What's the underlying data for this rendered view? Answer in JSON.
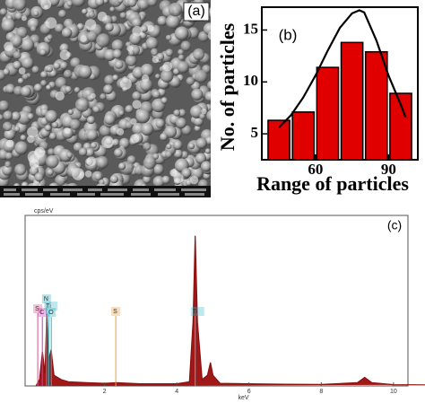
{
  "image_panel": {
    "label": "(a)"
  },
  "chart_data": [
    {
      "type": "histogram",
      "label": "(b)",
      "xlabel": "Range of particles",
      "ylabel": "No. of particles",
      "bins": [
        40,
        50,
        60,
        70,
        80,
        90,
        100
      ],
      "values": [
        6.3,
        7.1,
        11.4,
        13.8,
        12.9,
        8.9
      ],
      "color": "#e00000",
      "fit": {
        "x": [
          45,
          50,
          55,
          60,
          65,
          70,
          75,
          78,
          80,
          85,
          90,
          95,
          97
        ],
        "values": [
          5.6,
          6.8,
          8.5,
          10.6,
          13.0,
          15.2,
          16.6,
          16.9,
          16.7,
          14.0,
          10.6,
          7.8,
          6.6
        ],
        "color": "#000000"
      },
      "xlim": [
        38,
        102
      ],
      "ylim": [
        2.5,
        17.2
      ],
      "xticks": [
        60,
        90
      ],
      "yticks": [
        5,
        10,
        15
      ]
    },
    {
      "type": "line",
      "label": "(c)",
      "ylabel": "cps/eV",
      "xlabel": "keV",
      "color": "#8b1010",
      "x": [
        0.1,
        0.2,
        0.28,
        0.35,
        0.4,
        0.45,
        0.52,
        0.6,
        0.8,
        1.0,
        1.5,
        2.0,
        2.31,
        3.0,
        4.0,
        4.35,
        4.45,
        4.51,
        4.57,
        4.7,
        4.85,
        4.93,
        5.0,
        5.2,
        6.0,
        7.0,
        8.0,
        9.0,
        9.2,
        9.4,
        10.0,
        10.9
      ],
      "values": [
        0,
        0.3,
        1.6,
        0.6,
        3.4,
        1.2,
        1.7,
        0.5,
        0.3,
        0.2,
        0.15,
        0.12,
        0.15,
        0.1,
        0.1,
        0.2,
        3.0,
        7.05,
        3.0,
        0.3,
        0.5,
        1.1,
        0.5,
        0.12,
        0.1,
        0.08,
        0.07,
        0.15,
        0.4,
        0.15,
        0.06,
        0.05
      ],
      "xlim": [
        -0.2,
        10.4
      ],
      "ylim": [
        0,
        8
      ],
      "xticks": [
        2,
        4,
        6,
        8,
        10
      ],
      "markers": [
        {
          "label": "S",
          "x": 0.15,
          "color": "#e0508c"
        },
        {
          "label": "C",
          "x": 0.277,
          "color": "#c040c0"
        },
        {
          "label": "N",
          "x": 0.392,
          "color": "#30b0c0"
        },
        {
          "label": "Ti",
          "x": 0.452,
          "color": "#40c0d0"
        },
        {
          "label": "O",
          "x": 0.525,
          "color": "#30b0c0"
        },
        {
          "label": "S",
          "x": 2.31,
          "color": "#e8a040"
        },
        {
          "label": "Ti",
          "x": 4.51,
          "color": "#40c0d0"
        }
      ]
    }
  ]
}
